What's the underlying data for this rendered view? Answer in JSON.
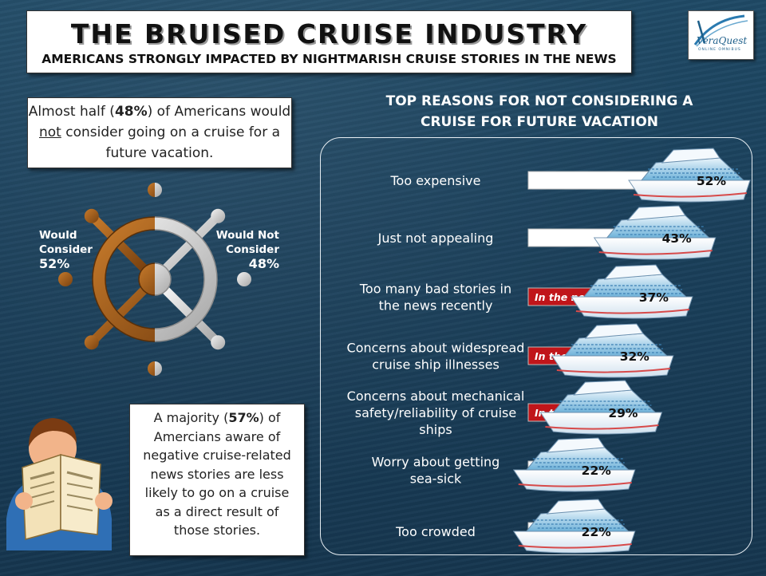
{
  "header": {
    "title": "THE BRUISED CRUISE INDUSTRY",
    "subtitle": "AMERICANS STRONGLY IMPACTED BY NIGHTMARISH CRUISE STORIES IN THE NEWS"
  },
  "logo": {
    "text": "VeraQuest",
    "tagline": "ONLINE OMNIBUS"
  },
  "note_top": {
    "pre": "Almost half (",
    "pct": "48%",
    "mid": ") of Americans would ",
    "underlined": "not",
    "post": " consider going on a cruise for a future vacation."
  },
  "note_bottom": {
    "pre": "A majority (",
    "pct": "57%",
    "post": ") of Amercians aware of negative cruise-related news stories are less likely to go on a cruise as a direct result of those stories."
  },
  "colors": {
    "consider": "#a8611a",
    "not_consider": "#cfcfcf",
    "news_tag": "#c0151a",
    "bar": "#ffffff"
  },
  "icons": [
    "ship-wheel-icon",
    "cruise-ship-icon",
    "newspaper-reader-icon"
  ],
  "chart_data": [
    {
      "type": "pie",
      "categories": [
        "Would Consider",
        "Would Not Consider"
      ],
      "labels": [
        [
          "Would",
          "Consider"
        ],
        [
          "Would Not",
          "Consider"
        ]
      ],
      "values": [
        52,
        48
      ],
      "value_labels": [
        "52%",
        "48%"
      ]
    },
    {
      "type": "bar",
      "orientation": "horizontal",
      "title": "TOP REASONS FOR NOT CONSIDERING A CRUISE FOR FUTURE VACATION",
      "categories": [
        "Too expensive",
        "Just not appealing",
        "Too many bad stories in the news recently",
        "Concerns about widespread cruise ship illnesses",
        "Concerns about mechanical safety/reliability of cruise ships",
        "Worry about getting sea-sick",
        "Too crowded"
      ],
      "category_lines": [
        [
          "Too expensive"
        ],
        [
          "Just not appealing"
        ],
        [
          "Too many bad stories in",
          "the news recently"
        ],
        [
          "Concerns about widespread",
          "cruise ship illnesses"
        ],
        [
          "Concerns about mechanical",
          "safety/reliability of cruise",
          "ships"
        ],
        [
          "Worry about getting",
          "sea-sick"
        ],
        [
          "Too crowded"
        ]
      ],
      "values": [
        52,
        43,
        37,
        32,
        29,
        22,
        22
      ],
      "value_labels": [
        "52%",
        "43%",
        "37%",
        "32%",
        "29%",
        "22%",
        "22%"
      ],
      "news_tag_text": "In the news",
      "news_tagged": [
        false,
        false,
        true,
        true,
        true,
        false,
        false
      ],
      "xlim": [
        0,
        52
      ]
    }
  ]
}
